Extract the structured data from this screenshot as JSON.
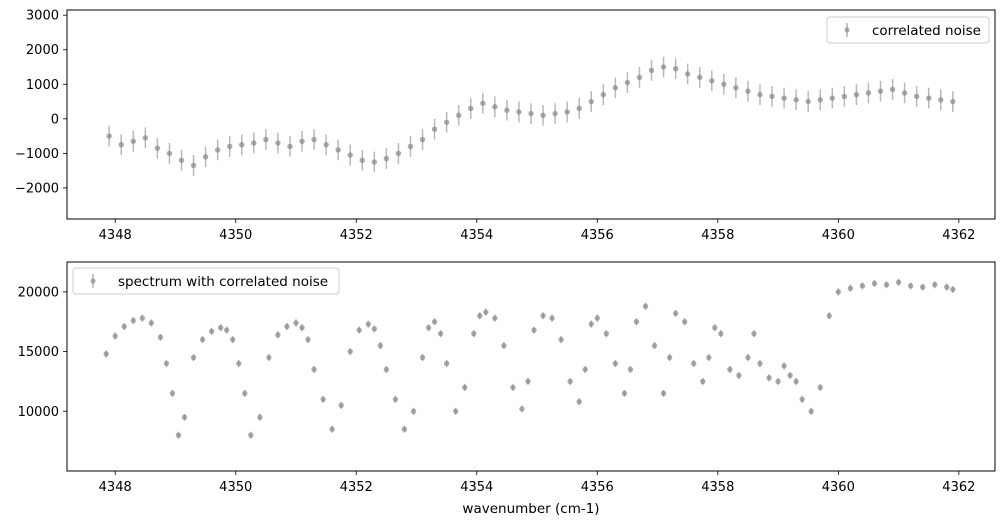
{
  "chart_data": [
    {
      "type": "scatter",
      "panel": "top",
      "series": [
        {
          "name": "correlated noise",
          "color": "#808080",
          "errorbars": true,
          "yerr_approx": 300,
          "x": [
            4347.9,
            4348.1,
            4348.3,
            4348.5,
            4348.7,
            4348.9,
            4349.1,
            4349.3,
            4349.5,
            4349.7,
            4349.9,
            4350.1,
            4350.3,
            4350.5,
            4350.7,
            4350.9,
            4351.1,
            4351.3,
            4351.5,
            4351.7,
            4351.9,
            4352.1,
            4352.3,
            4352.5,
            4352.7,
            4352.9,
            4353.1,
            4353.3,
            4353.5,
            4353.7,
            4353.9,
            4354.1,
            4354.3,
            4354.5,
            4354.7,
            4354.9,
            4355.1,
            4355.3,
            4355.5,
            4355.7,
            4355.9,
            4356.1,
            4356.3,
            4356.5,
            4356.7,
            4356.9,
            4357.1,
            4357.3,
            4357.5,
            4357.7,
            4357.9,
            4358.1,
            4358.3,
            4358.5,
            4358.7,
            4358.9,
            4359.1,
            4359.3,
            4359.5,
            4359.7,
            4359.9,
            4360.1,
            4360.3,
            4360.5,
            4360.7,
            4360.9,
            4361.1,
            4361.3,
            4361.5,
            4361.7,
            4361.9
          ],
          "y": [
            -500,
            -750,
            -650,
            -550,
            -850,
            -1000,
            -1200,
            -1350,
            -1100,
            -900,
            -800,
            -750,
            -700,
            -600,
            -700,
            -800,
            -650,
            -600,
            -750,
            -900,
            -1050,
            -1200,
            -1250,
            -1150,
            -1000,
            -800,
            -600,
            -300,
            -100,
            100,
            300,
            450,
            350,
            250,
            200,
            150,
            100,
            150,
            200,
            300,
            500,
            700,
            900,
            1050,
            1200,
            1400,
            1500,
            1450,
            1300,
            1200,
            1100,
            1000,
            900,
            800,
            700,
            650,
            600,
            550,
            500,
            550,
            600,
            650,
            700,
            750,
            800,
            850,
            750,
            650,
            600,
            550,
            500
          ]
        }
      ],
      "xlim": [
        4347.2,
        4362.6
      ],
      "ylim": [
        -2900,
        3150
      ],
      "xticks": [
        4348,
        4350,
        4352,
        4354,
        4356,
        4358,
        4360,
        4362
      ],
      "yticks": [
        -2000,
        -1000,
        0,
        1000,
        2000,
        3000
      ],
      "xtick_labels": [
        "4348",
        "4350",
        "4352",
        "4354",
        "4356",
        "4358",
        "4360",
        "4362"
      ],
      "ytick_labels": [
        "−2000",
        "−1000",
        "0",
        "1000",
        "2000",
        "3000"
      ],
      "legend": "top-right",
      "title": "",
      "xlabel": "",
      "ylabel": ""
    },
    {
      "type": "scatter",
      "panel": "bottom",
      "series": [
        {
          "name": "spectrum with correlated noise",
          "color": "#808080",
          "errorbars": true,
          "yerr_approx": 300,
          "x": [
            4347.85,
            4348.0,
            4348.15,
            4348.3,
            4348.45,
            4348.6,
            4348.75,
            4348.85,
            4348.95,
            4349.05,
            4349.15,
            4349.3,
            4349.45,
            4349.6,
            4349.75,
            4349.85,
            4349.95,
            4350.05,
            4350.15,
            4350.25,
            4350.4,
            4350.55,
            4350.7,
            4350.85,
            4351.0,
            4351.1,
            4351.2,
            4351.3,
            4351.45,
            4351.6,
            4351.75,
            4351.9,
            4352.05,
            4352.2,
            4352.3,
            4352.4,
            4352.5,
            4352.65,
            4352.8,
            4352.95,
            4353.1,
            4353.2,
            4353.3,
            4353.4,
            4353.5,
            4353.65,
            4353.8,
            4353.95,
            4354.05,
            4354.15,
            4354.3,
            4354.45,
            4354.6,
            4354.75,
            4354.85,
            4354.95,
            4355.1,
            4355.25,
            4355.4,
            4355.55,
            4355.7,
            4355.8,
            4355.9,
            4356.0,
            4356.15,
            4356.3,
            4356.45,
            4356.55,
            4356.65,
            4356.8,
            4356.95,
            4357.1,
            4357.2,
            4357.3,
            4357.45,
            4357.6,
            4357.75,
            4357.85,
            4357.95,
            4358.05,
            4358.2,
            4358.35,
            4358.5,
            4358.6,
            4358.7,
            4358.85,
            4359.0,
            4359.1,
            4359.2,
            4359.3,
            4359.4,
            4359.55,
            4359.7,
            4359.85,
            4360.0,
            4360.2,
            4360.4,
            4360.6,
            4360.8,
            4361.0,
            4361.2,
            4361.4,
            4361.6,
            4361.8,
            4361.9
          ],
          "y": [
            14800,
            16300,
            17100,
            17600,
            17800,
            17400,
            16200,
            14000,
            11500,
            8000,
            9500,
            14500,
            16000,
            16700,
            17000,
            16800,
            16000,
            14000,
            11500,
            8000,
            9500,
            14500,
            16400,
            17100,
            17400,
            17000,
            16000,
            13500,
            11000,
            8500,
            10500,
            15000,
            16800,
            17300,
            16900,
            15500,
            13500,
            11000,
            8500,
            10000,
            14500,
            17000,
            17500,
            16500,
            14000,
            10000,
            12000,
            16500,
            18000,
            18300,
            17800,
            15500,
            12000,
            10200,
            12500,
            16800,
            18000,
            17800,
            16000,
            12500,
            10800,
            13500,
            17300,
            17800,
            16500,
            14000,
            11500,
            13500,
            17500,
            18800,
            15500,
            11500,
            14500,
            18200,
            17500,
            14000,
            12500,
            14500,
            17000,
            16500,
            13500,
            13000,
            14500,
            16500,
            14000,
            12800,
            12500,
            13800,
            13000,
            12500,
            11000,
            10000,
            12000,
            18000,
            20000,
            20300,
            20500,
            20700,
            20600,
            20800,
            20500,
            20400,
            20600,
            20400,
            20200
          ]
        }
      ],
      "xlim": [
        4347.2,
        4362.6
      ],
      "ylim": [
        5000,
        22500
      ],
      "xticks": [
        4348,
        4350,
        4352,
        4354,
        4356,
        4358,
        4360,
        4362
      ],
      "yticks": [
        10000,
        15000,
        20000
      ],
      "xtick_labels": [
        "4348",
        "4350",
        "4352",
        "4354",
        "4356",
        "4358",
        "4360",
        "4362"
      ],
      "ytick_labels": [
        "10000",
        "15000",
        "20000"
      ],
      "legend": "top-left",
      "title": "",
      "xlabel": "wavenumber (cm-1)",
      "ylabel": ""
    }
  ]
}
